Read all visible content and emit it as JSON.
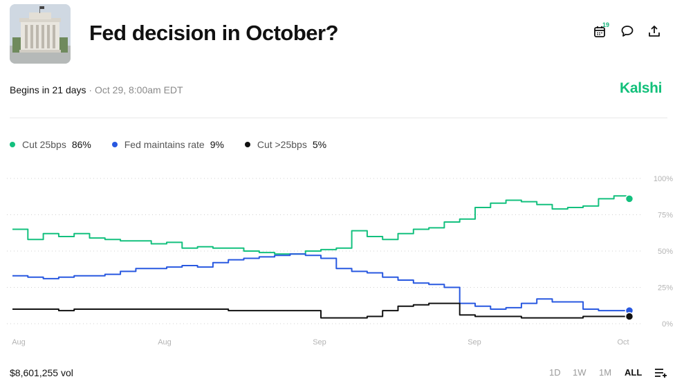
{
  "market": {
    "title": "Fed decision in October?",
    "begins_label": "Begins in 21 days",
    "separator": "·",
    "date": "Oct 29, 8:00am EDT",
    "brand": "Kalshi",
    "calendar_badge": "19",
    "icons": {
      "calendar": "calendar-icon",
      "comment": "comment-icon",
      "share": "share-icon",
      "thumbnail": "federal-reserve-building-image",
      "menu": "list-filter-icon"
    }
  },
  "legend": [
    {
      "name": "Cut 25bps",
      "value": "86%",
      "color": "#13c07e"
    },
    {
      "name": "Fed maintains rate",
      "value": "9%",
      "color": "#2858e0"
    },
    {
      "name": "Cut >25bps",
      "value": "5%",
      "color": "#111111"
    }
  ],
  "footer": {
    "volume": "$8,601,255 vol",
    "ranges": [
      "1D",
      "1W",
      "1M",
      "ALL"
    ],
    "active_range": "ALL"
  },
  "chart_data": {
    "type": "line",
    "title": "",
    "xlabel": "",
    "ylabel": "",
    "ylim": [
      0,
      100
    ],
    "yticks": [
      "100%",
      "75%",
      "50%",
      "25%",
      "0%"
    ],
    "xticks": [
      "Aug",
      "Aug",
      "Sep",
      "Sep",
      "Oct"
    ],
    "x": [
      0,
      1,
      2,
      3,
      4,
      5,
      6,
      7,
      8,
      9,
      10,
      11,
      12,
      13,
      14,
      15,
      16,
      17,
      18,
      19,
      20,
      21,
      22,
      23,
      24,
      25,
      26,
      27,
      28,
      29,
      30,
      31,
      32,
      33,
      34,
      35,
      36,
      37,
      38,
      39,
      40
    ],
    "series": [
      {
        "name": "Cut 25bps",
        "color": "#13c07e",
        "values": [
          65,
          58,
          62,
          60,
          62,
          59,
          58,
          57,
          57,
          55,
          56,
          52,
          53,
          52,
          52,
          50,
          49,
          48,
          48,
          50,
          51,
          52,
          64,
          60,
          58,
          62,
          65,
          66,
          70,
          72,
          80,
          83,
          85,
          84,
          82,
          79,
          80,
          81,
          86,
          88,
          86
        ]
      },
      {
        "name": "Fed maintains rate",
        "color": "#2858e0",
        "values": [
          33,
          32,
          31,
          32,
          33,
          33,
          34,
          36,
          38,
          38,
          39,
          40,
          39,
          42,
          44,
          45,
          46,
          47,
          48,
          47,
          45,
          38,
          36,
          35,
          32,
          30,
          28,
          27,
          25,
          14,
          12,
          10,
          11,
          14,
          17,
          15,
          15,
          10,
          9,
          9,
          9
        ]
      },
      {
        "name": "Cut >25bps",
        "color": "#111111",
        "values": [
          10,
          10,
          10,
          9,
          10,
          10,
          10,
          10,
          10,
          10,
          10,
          10,
          10,
          10,
          9,
          9,
          9,
          9,
          9,
          9,
          4,
          4,
          4,
          5,
          9,
          12,
          13,
          14,
          14,
          6,
          5,
          5,
          5,
          4,
          4,
          4,
          4,
          5,
          5,
          5,
          5
        ]
      }
    ]
  }
}
